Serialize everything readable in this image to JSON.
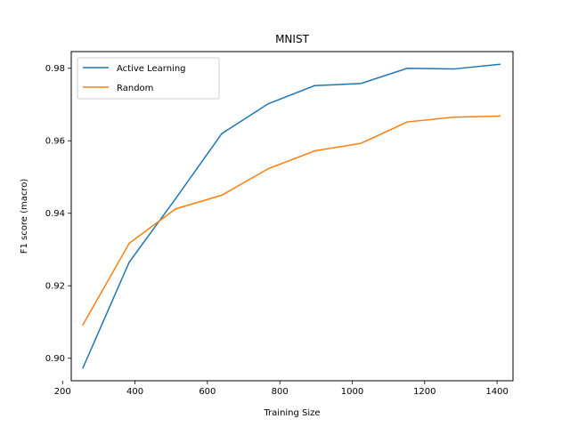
{
  "chart_data": {
    "type": "line",
    "title": "MNIST",
    "xlabel": "Training Size",
    "ylabel": "F1 score (macro)",
    "xlim": [
      224,
      1444
    ],
    "ylim": [
      0.8938,
      0.9846
    ],
    "xticks": [
      200,
      400,
      600,
      800,
      1000,
      1200,
      1400
    ],
    "xtick_labels": [
      "200",
      "400",
      "600",
      "800",
      "1000",
      "1200",
      "1400"
    ],
    "yticks": [
      0.9,
      0.92,
      0.94,
      0.96,
      0.98
    ],
    "ytick_labels": [
      "0.90",
      "0.92",
      "0.94",
      "0.96",
      "0.98"
    ],
    "grid": false,
    "legend_position": "top-left",
    "x": [
      256,
      384,
      512,
      640,
      768,
      896,
      1024,
      1152,
      1280,
      1408
    ],
    "series": [
      {
        "name": "Active Learning",
        "color": "#1f77b4",
        "values": [
          0.8973,
          0.9265,
          0.944,
          0.962,
          0.9702,
          0.9752,
          0.9758,
          0.98,
          0.9798,
          0.9811
        ]
      },
      {
        "name": "Random",
        "color": "#ff7f0e",
        "values": [
          0.9092,
          0.9317,
          0.9412,
          0.945,
          0.9523,
          0.9572,
          0.9593,
          0.9652,
          0.9665,
          0.9668
        ]
      }
    ]
  }
}
